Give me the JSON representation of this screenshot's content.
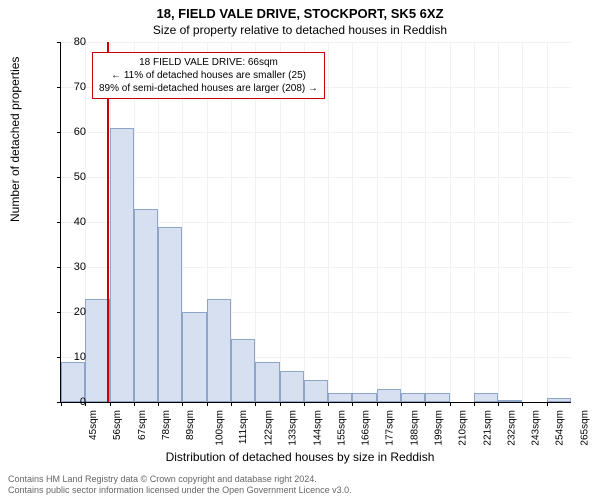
{
  "title": "18, FIELD VALE DRIVE, STOCKPORT, SK5 6XZ",
  "subtitle": "Size of property relative to detached houses in Reddish",
  "ylabel": "Number of detached properties",
  "xlabel": "Distribution of detached houses by size in Reddish",
  "chart": {
    "type": "histogram",
    "ylim": [
      0,
      80
    ],
    "ytick_step": 10,
    "bar_fill": "#d6e0f0",
    "bar_stroke": "#8fa5c8",
    "grid_color": "#f0f0f5",
    "marker_color": "#cc0000",
    "marker_x_value": 66,
    "x_start": 45,
    "x_step": 11,
    "x_count": 21,
    "x_unit": "sqm",
    "values": [
      9,
      23,
      61,
      43,
      39,
      20,
      23,
      14,
      9,
      7,
      5,
      2,
      2,
      3,
      2,
      2,
      0,
      2,
      0.5,
      0,
      1
    ]
  },
  "annotation": {
    "line1": "18 FIELD VALE DRIVE: 66sqm",
    "line2": "← 11% of detached houses are smaller (25)",
    "line3": "89% of semi-detached houses are larger (208) →"
  },
  "footer": {
    "line1": "Contains HM Land Registry data © Crown copyright and database right 2024.",
    "line2": "Contains public sector information licensed under the Open Government Licence v3.0."
  }
}
